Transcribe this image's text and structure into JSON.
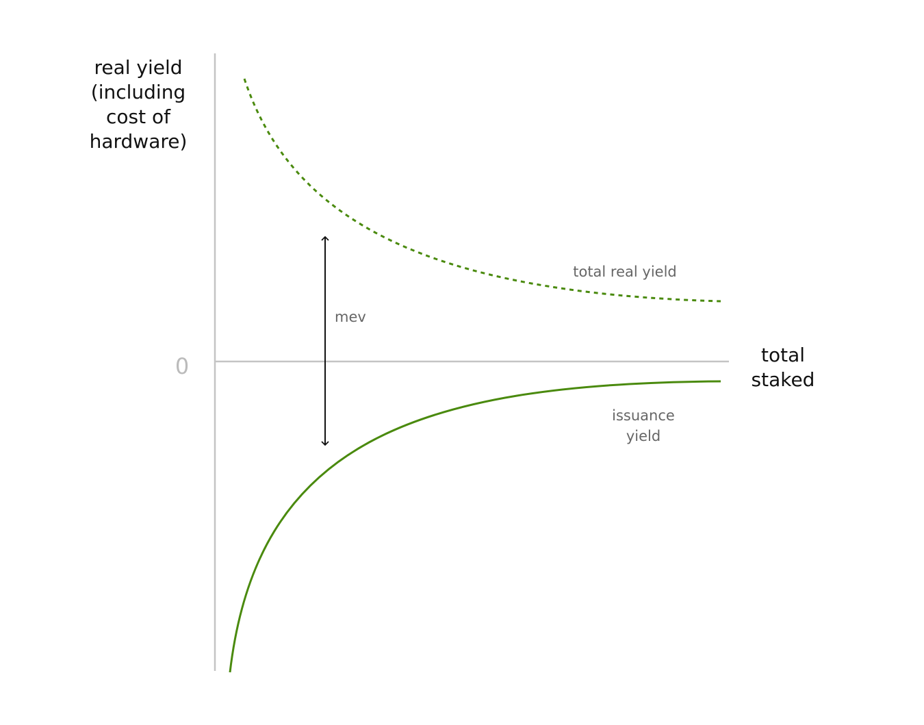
{
  "y_axis_label": [
    "real yield",
    "(including",
    "cost of",
    "hardware)"
  ],
  "x_axis_label": [
    "total",
    "staked"
  ],
  "zero_label": "0",
  "curves": {
    "total_real_yield": "total real yield",
    "mev": "mev",
    "issuance_yield": [
      "issuance",
      "yield"
    ]
  }
}
